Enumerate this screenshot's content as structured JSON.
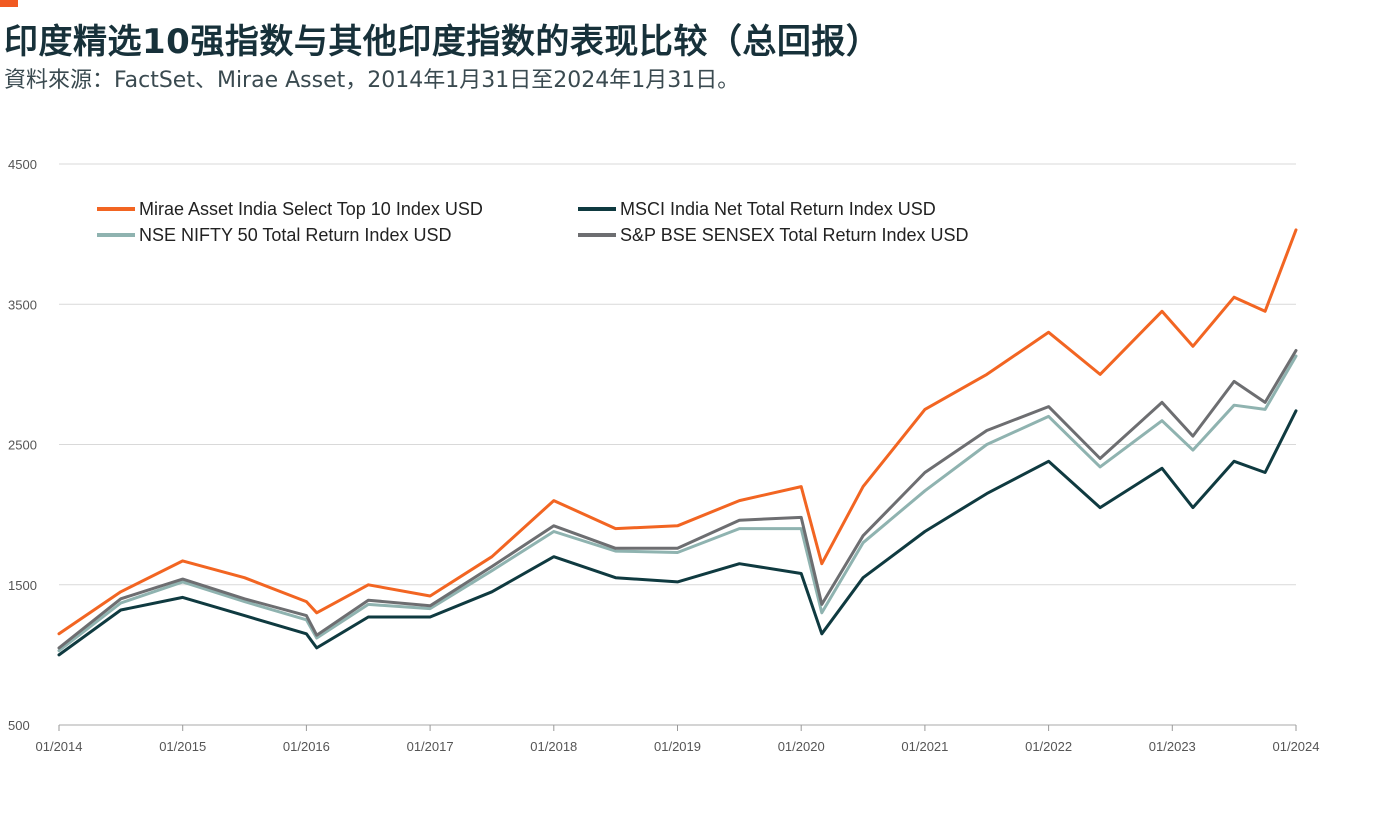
{
  "header": {
    "title": "印度精选10强指数与其他印度指数的表现比较（总回报）",
    "subtitle": "資料來源：FactSet、Mirae Asset，2014年1月31日至2024年1月31日。"
  },
  "colors": {
    "accent": "#f15a22",
    "mirae": "#f26522",
    "msci": "#0f3a40",
    "nifty": "#8fb3b0",
    "sensex": "#6d6e71",
    "grid": "#d9d9d9"
  },
  "chart_data": {
    "type": "line",
    "title": "",
    "xlabel": "",
    "ylabel": "",
    "ylim": [
      500,
      4500
    ],
    "yticks": [
      500,
      1500,
      2500,
      3500,
      4500
    ],
    "xlim": [
      "2014-01",
      "2024-01"
    ],
    "xticks": [
      "01/2014",
      "01/2015",
      "01/2016",
      "01/2017",
      "01/2018",
      "01/2019",
      "01/2020",
      "01/2021",
      "01/2022",
      "01/2023",
      "01/2024"
    ],
    "grid": "horizontal",
    "legend_position": "top-left",
    "x": [
      "2014-01",
      "2014-07",
      "2015-01",
      "2015-07",
      "2016-01",
      "2016-02",
      "2016-07",
      "2017-01",
      "2017-07",
      "2018-01",
      "2018-07",
      "2019-01",
      "2019-07",
      "2020-01",
      "2020-03",
      "2020-07",
      "2021-01",
      "2021-07",
      "2022-01",
      "2022-06",
      "2022-12",
      "2023-03",
      "2023-07",
      "2023-10",
      "2024-01"
    ],
    "series": [
      {
        "name": "Mirae Asset India Select Top 10 Index USD",
        "color_key": "mirae",
        "values": [
          1150,
          1450,
          1670,
          1550,
          1380,
          1300,
          1500,
          1420,
          1700,
          2100,
          1900,
          1920,
          2100,
          2200,
          1650,
          2200,
          2750,
          3000,
          3300,
          3000,
          3450,
          3200,
          3550,
          3450,
          4030
        ]
      },
      {
        "name": "MSCI India Net Total Return Index USD",
        "color_key": "msci",
        "values": [
          1000,
          1320,
          1410,
          1280,
          1150,
          1050,
          1270,
          1270,
          1450,
          1700,
          1550,
          1520,
          1650,
          1580,
          1150,
          1550,
          1880,
          2150,
          2380,
          2050,
          2330,
          2050,
          2380,
          2300,
          2740
        ]
      },
      {
        "name": "NSE NIFTY 50 Total Return Index USD",
        "color_key": "nifty",
        "values": [
          1030,
          1370,
          1520,
          1380,
          1250,
          1120,
          1360,
          1330,
          1600,
          1880,
          1740,
          1730,
          1900,
          1900,
          1300,
          1800,
          2170,
          2500,
          2700,
          2340,
          2670,
          2460,
          2780,
          2750,
          3130
        ]
      },
      {
        "name": "S&P BSE SENSEX Total Return Index USD",
        "color_key": "sensex",
        "values": [
          1050,
          1400,
          1540,
          1400,
          1280,
          1140,
          1390,
          1350,
          1630,
          1920,
          1760,
          1760,
          1960,
          1980,
          1360,
          1850,
          2300,
          2600,
          2770,
          2400,
          2800,
          2560,
          2950,
          2800,
          3170
        ]
      }
    ]
  }
}
